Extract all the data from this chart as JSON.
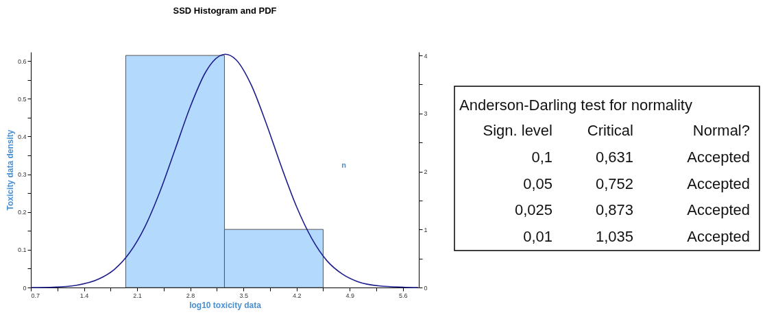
{
  "chart_data": [
    {
      "type": "histogram",
      "title": "SSD Histogram and PDF",
      "xlabel": "log10 toxicity data",
      "ylabel": "Toxicity data density",
      "y2label": "n",
      "bins": [
        1.95,
        3.25,
        4.55
      ],
      "values": [
        0.615,
        0.154
      ],
      "color": "#b3d9fc",
      "series": [
        {
          "type": "line",
          "color": "#1c1c8c",
          "x": [
            0.7,
            1.0,
            1.3,
            1.6,
            1.8,
            2.0,
            2.2,
            2.4,
            2.6,
            2.8,
            3.0,
            3.1,
            3.26,
            3.4,
            3.6,
            3.8,
            4.0,
            4.2,
            4.4,
            4.6,
            4.8,
            5.0,
            5.3,
            5.6,
            5.8
          ],
          "values": [
            0,
            0.001,
            0.006,
            0.023,
            0.048,
            0.092,
            0.16,
            0.254,
            0.366,
            0.479,
            0.57,
            0.599,
            0.618,
            0.604,
            0.538,
            0.435,
            0.32,
            0.214,
            0.13,
            0.071,
            0.036,
            0.016,
            0.004,
            0.001,
            0
          ]
        }
      ],
      "xlim": [
        0.7,
        5.81
      ],
      "xticks": [
        0.7,
        {
          "value": 1.05,
          "label": null
        },
        1.4,
        {
          "value": 1.75,
          "label": null
        },
        2.1,
        {
          "value": 2.45,
          "label": null
        },
        2.8,
        {
          "value": 3.15,
          "label": null
        },
        3.5,
        {
          "value": 3.85,
          "label": null
        },
        4.2,
        {
          "value": 4.55,
          "label": null
        },
        4.9,
        {
          "value": 5.25,
          "label": null
        },
        5.6
      ],
      "ylim": [
        0,
        0.624
      ],
      "yticks": [
        0,
        {
          "value": 0.05,
          "label": null
        },
        0.1,
        {
          "value": 0.15,
          "label": null
        },
        0.2,
        {
          "value": 0.25,
          "label": null
        },
        0.3,
        {
          "value": 0.35,
          "label": null
        },
        0.4,
        {
          "value": 0.45,
          "label": null
        },
        0.5,
        {
          "value": 0.55,
          "label": null
        },
        0.6
      ],
      "y2lim": [
        0,
        4.06
      ],
      "y2ticks": [
        0,
        {
          "value": 0.5,
          "label": null
        },
        1,
        {
          "value": 1.5,
          "label": null
        },
        2,
        {
          "value": 2.5,
          "label": null
        },
        3,
        {
          "value": 3.5,
          "label": null
        },
        4
      ],
      "grid": false
    },
    {
      "type": "other",
      "title": "Anderson-Darling test for normality",
      "categories": [
        "Sign. level",
        "Critical",
        "Normal?"
      ],
      "annotations": [
        "0,1",
        "0,631",
        "Accepted",
        "0,05",
        "0,752",
        "Accepted",
        "0,025",
        "0,873",
        "Accepted",
        "0,01",
        "1,035",
        "Accepted"
      ]
    }
  ]
}
